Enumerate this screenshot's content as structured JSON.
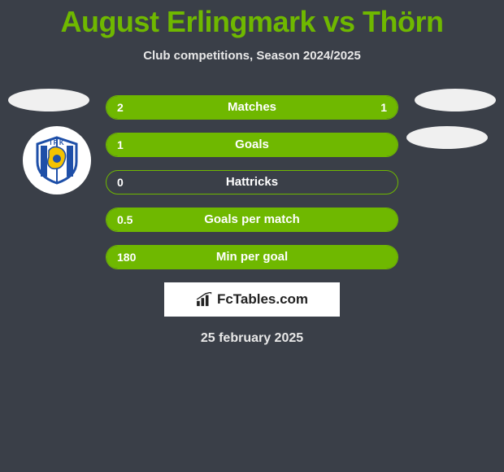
{
  "title": "August Erlingmark vs Thörn",
  "subtitle": "Club competitions, Season 2024/2025",
  "date": "25 february 2025",
  "brand": "FcTables.com",
  "colors": {
    "accent": "#6fb800",
    "background": "#3a3f48",
    "text_light": "#e8e8e8",
    "text_white": "#ffffff",
    "brand_box_bg": "#ffffff",
    "brand_text": "#222222"
  },
  "club_left": {
    "name": "IFK",
    "badge_bg": "#ffffff",
    "stripe_colors": [
      "#1e4fa8",
      "#f3c200"
    ]
  },
  "stats": [
    {
      "label": "Matches",
      "left_val": "2",
      "right_val": "1",
      "left_pct": 66.7,
      "right_pct": 33.3
    },
    {
      "label": "Goals",
      "left_val": "1",
      "right_val": "",
      "left_pct": 100,
      "right_pct": 0
    },
    {
      "label": "Hattricks",
      "left_val": "0",
      "right_val": "",
      "left_pct": 0,
      "right_pct": 0
    },
    {
      "label": "Goals per match",
      "left_val": "0.5",
      "right_val": "",
      "left_pct": 100,
      "right_pct": 0
    },
    {
      "label": "Min per goal",
      "left_val": "180",
      "right_val": "",
      "left_pct": 100,
      "right_pct": 0
    }
  ]
}
